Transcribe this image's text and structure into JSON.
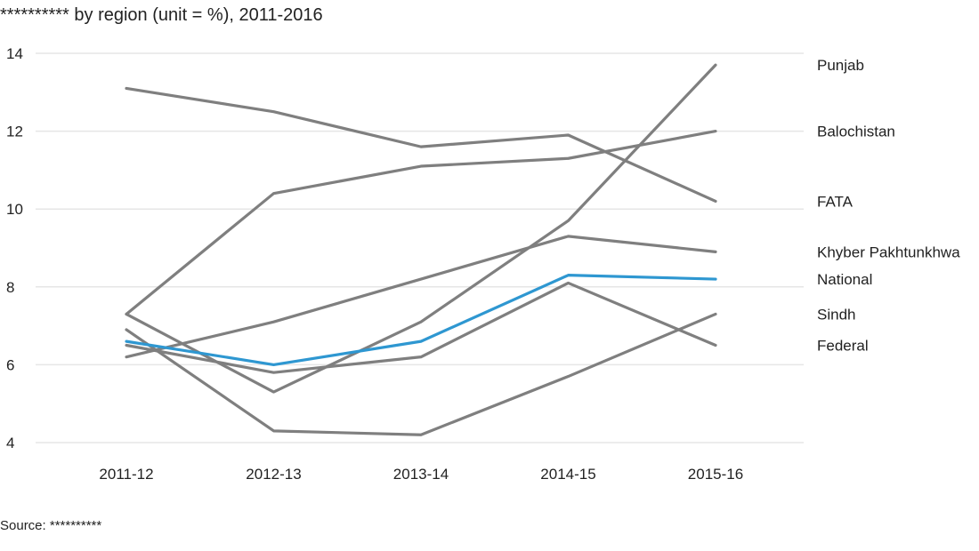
{
  "title": "********** by region (unit = %), 2011-2016",
  "source": "Source: **********",
  "colors": {
    "highlight": "#2e97d1",
    "default": "#7f7f7f",
    "grid": "#e6e6e6"
  },
  "chart_data": {
    "type": "line",
    "title": "********** by region (unit = %), 2011-2016",
    "xlabel": "",
    "ylabel": "",
    "categories": [
      "2011-12",
      "2012-13",
      "2013-14",
      "2014-15",
      "2015-16"
    ],
    "ylim": [
      4,
      14
    ],
    "yticks": [
      "4",
      "6",
      "8",
      "10",
      "12",
      "14"
    ],
    "grid": true,
    "legend": "direct labels at right",
    "series": [
      {
        "name": "Punjab",
        "values": [
          7.3,
          5.3,
          7.1,
          9.7,
          13.7
        ],
        "highlight": false
      },
      {
        "name": "Balochistan",
        "values": [
          7.3,
          10.4,
          11.1,
          11.3,
          12.0
        ],
        "highlight": false
      },
      {
        "name": "FATA",
        "values": [
          13.1,
          12.5,
          11.6,
          11.9,
          10.2
        ],
        "highlight": false
      },
      {
        "name": "Khyber Pakhtunkhwa",
        "values": [
          6.2,
          7.1,
          8.2,
          9.3,
          8.9
        ],
        "highlight": false
      },
      {
        "name": "National",
        "values": [
          6.6,
          6.0,
          6.6,
          8.3,
          8.2
        ],
        "highlight": true
      },
      {
        "name": "Sindh",
        "values": [
          6.9,
          4.3,
          4.2,
          5.7,
          7.3
        ],
        "highlight": false
      },
      {
        "name": "Federal",
        "values": [
          6.5,
          5.8,
          6.2,
          8.1,
          6.5
        ],
        "highlight": false
      }
    ]
  }
}
